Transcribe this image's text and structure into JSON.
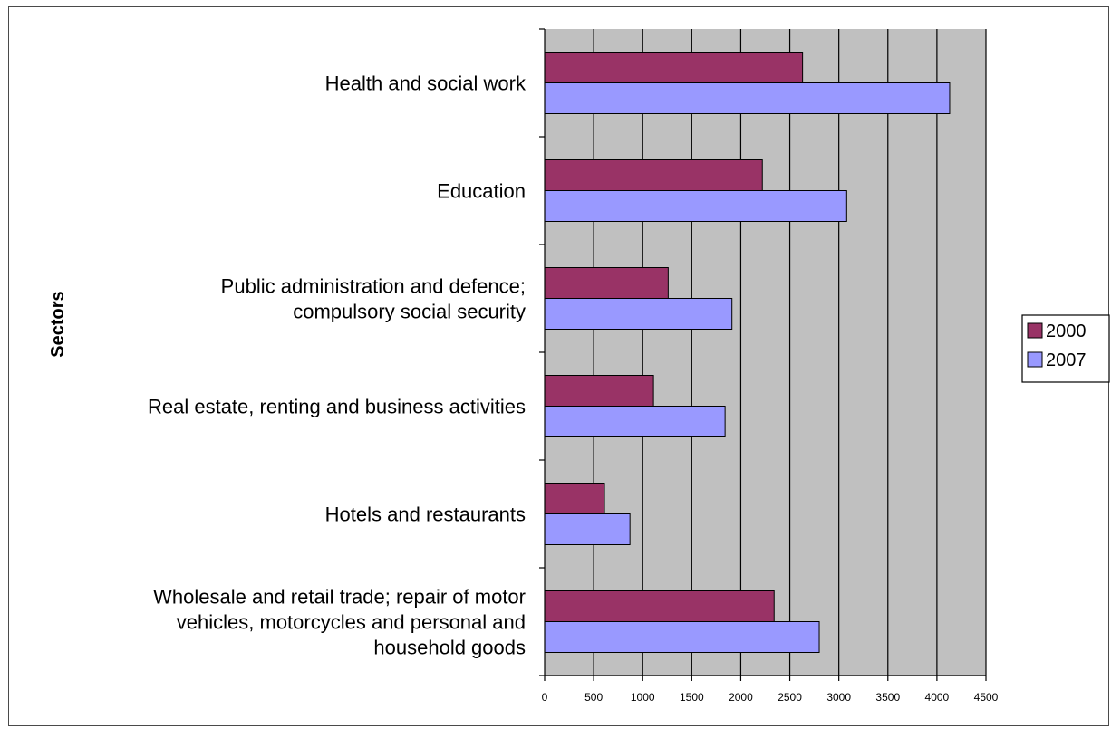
{
  "chart_data": {
    "type": "bar",
    "orientation": "horizontal",
    "title": "",
    "xlabel": "",
    "ylabel": "Sectors",
    "xlim": [
      0,
      4500
    ],
    "xticks": [
      0,
      500,
      1000,
      1500,
      2000,
      2500,
      3000,
      3500,
      4000,
      4500
    ],
    "grid": "vertical",
    "legend_position": "right",
    "categories": [
      [
        "Health and social work"
      ],
      [
        "Education"
      ],
      [
        "Public administration and defence;",
        "compulsory social security"
      ],
      [
        "Real estate, renting and business activities"
      ],
      [
        "Hotels and restaurants"
      ],
      [
        "Wholesale and retail trade; repair of motor",
        "vehicles, motorcycles and personal and",
        "household goods"
      ]
    ],
    "series": [
      {
        "name": "2000",
        "color": "#993366",
        "values": [
          2630,
          2220,
          1260,
          1110,
          610,
          2340
        ]
      },
      {
        "name": "2007",
        "color": "#9999FF",
        "values": [
          4130,
          3080,
          1910,
          1840,
          870,
          2800
        ]
      }
    ],
    "plot_background": "#C0C0C0"
  }
}
